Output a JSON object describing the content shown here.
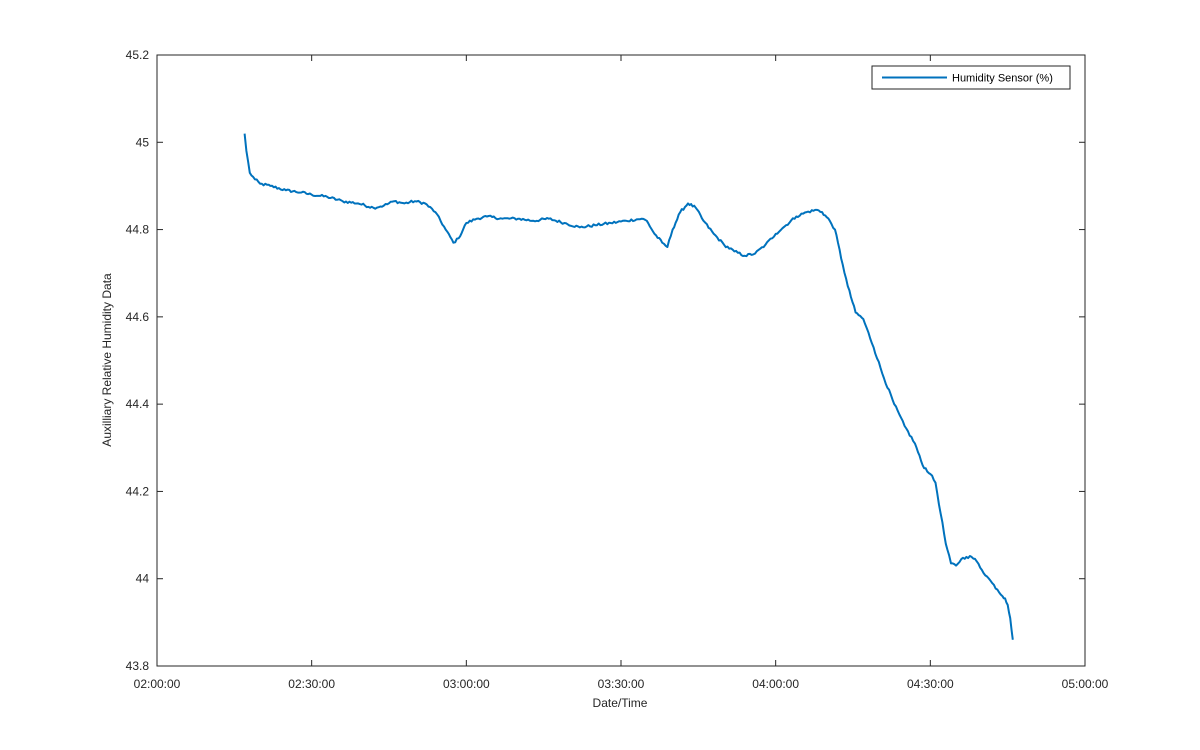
{
  "colors": {
    "series": "#0072BD",
    "axis": "#262626",
    "background": "#ffffff"
  },
  "chart_data": {
    "type": "line",
    "xlabel": "Date/Time",
    "ylabel": "Auxilliary Relative Humidity Data",
    "xlim": [
      "02:00:00",
      "05:00:00"
    ],
    "ylim": [
      43.8,
      45.2
    ],
    "x_ticks": [
      "02:00:00",
      "02:30:00",
      "03:00:00",
      "03:30:00",
      "04:00:00",
      "04:30:00",
      "05:00:00"
    ],
    "y_ticks": [
      "43.8",
      "44",
      "44.2",
      "44.4",
      "44.6",
      "44.8",
      "45",
      "45.2"
    ],
    "grid": false,
    "box": true,
    "legend": {
      "location": "top-right",
      "entries": [
        "Humidity Sensor (%)"
      ]
    },
    "series": [
      {
        "name": "Humidity Sensor (%)",
        "x": [
          "02:17:00",
          "02:17:20",
          "02:18:00",
          "02:19:00",
          "02:20:00",
          "02:22:00",
          "02:25:00",
          "02:28:00",
          "02:30:00",
          "02:33:00",
          "02:36:00",
          "02:39:00",
          "02:42:00",
          "02:44:00",
          "02:46:00",
          "02:48:00",
          "02:50:00",
          "02:52:00",
          "02:54:00",
          "02:56:00",
          "02:57:30",
          "02:58:30",
          "03:00:00",
          "03:02:00",
          "03:04:00",
          "03:07:00",
          "03:10:00",
          "03:13:00",
          "03:16:00",
          "03:19:00",
          "03:22:00",
          "03:25:00",
          "03:28:00",
          "03:31:00",
          "03:34:00",
          "03:35:00",
          "03:36:30",
          "03:38:00",
          "03:39:00",
          "03:40:00",
          "03:41:30",
          "03:43:00",
          "03:44:30",
          "03:46:00",
          "03:48:00",
          "03:50:00",
          "03:52:00",
          "03:54:00",
          "03:56:00",
          "03:58:00",
          "04:00:00",
          "04:02:00",
          "04:04:00",
          "04:06:00",
          "04:08:00",
          "04:09:00",
          "04:10:30",
          "04:11:30",
          "04:13:00",
          "04:14:00",
          "04:15:30",
          "04:17:00",
          "04:19:00",
          "04:21:00",
          "04:23:00",
          "04:25:00",
          "04:27:00",
          "04:28:30",
          "04:30:00",
          "04:31:00",
          "04:32:00",
          "04:33:00",
          "04:34:00",
          "04:35:00",
          "04:36:00",
          "04:37:00",
          "04:38:00",
          "04:39:00",
          "04:40:00",
          "04:41:00",
          "04:42:00",
          "04:43:00",
          "04:44:00",
          "04:44:30",
          "04:45:00",
          "04:45:30",
          "04:46:00"
        ],
        "values": [
          45.02,
          44.98,
          44.93,
          44.915,
          44.905,
          44.9,
          44.89,
          44.885,
          44.88,
          44.875,
          44.865,
          44.86,
          44.85,
          44.855,
          44.865,
          44.86,
          44.865,
          44.86,
          44.84,
          44.8,
          44.77,
          44.78,
          44.815,
          44.825,
          44.83,
          44.825,
          44.825,
          44.82,
          44.825,
          44.815,
          44.805,
          44.81,
          44.815,
          44.82,
          44.825,
          44.82,
          44.79,
          44.77,
          44.76,
          44.8,
          44.84,
          44.86,
          44.85,
          44.82,
          44.79,
          44.765,
          44.75,
          44.74,
          44.745,
          44.765,
          44.79,
          44.81,
          44.83,
          44.84,
          44.845,
          44.84,
          44.82,
          44.8,
          44.72,
          44.67,
          44.61,
          44.595,
          44.53,
          44.46,
          44.4,
          44.35,
          44.31,
          44.26,
          44.24,
          44.22,
          44.15,
          44.08,
          44.035,
          44.03,
          44.045,
          44.05,
          44.05,
          44.04,
          44.02,
          44.005,
          43.99,
          43.975,
          43.96,
          43.955,
          43.94,
          43.91,
          43.86
        ]
      }
    ]
  }
}
